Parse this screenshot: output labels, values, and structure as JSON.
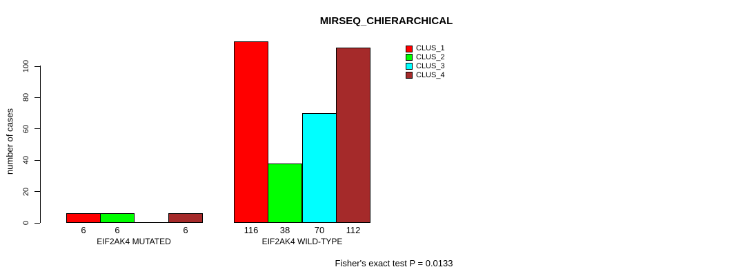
{
  "chart_data": {
    "type": "bar",
    "title": "MIRSEQ_CHIERARCHICAL",
    "xlabel": "",
    "ylabel": "number of cases",
    "yticks": [
      0,
      20,
      40,
      60,
      80,
      100
    ],
    "ylim": [
      0,
      116
    ],
    "grid": false,
    "legend_position": "top-right",
    "categories": [
      "EIF2AK4 MUTATED",
      "EIF2AK4 WILD-TYPE"
    ],
    "series": [
      {
        "name": "CLUS_1",
        "color": "#ff0000",
        "values": [
          6,
          116
        ]
      },
      {
        "name": "CLUS_2",
        "color": "#00ff00",
        "values": [
          6,
          38
        ]
      },
      {
        "name": "CLUS_3",
        "color": "#00ffff",
        "values": [
          0,
          70
        ]
      },
      {
        "name": "CLUS_4",
        "color": "#a52a2a",
        "values": [
          6,
          112
        ]
      }
    ],
    "bar_value_labels": [
      [
        "6",
        "6",
        "",
        "6"
      ],
      [
        "116",
        "38",
        "70",
        "112"
      ]
    ],
    "annotation": "Fisher's exact test P = 0.0133"
  }
}
